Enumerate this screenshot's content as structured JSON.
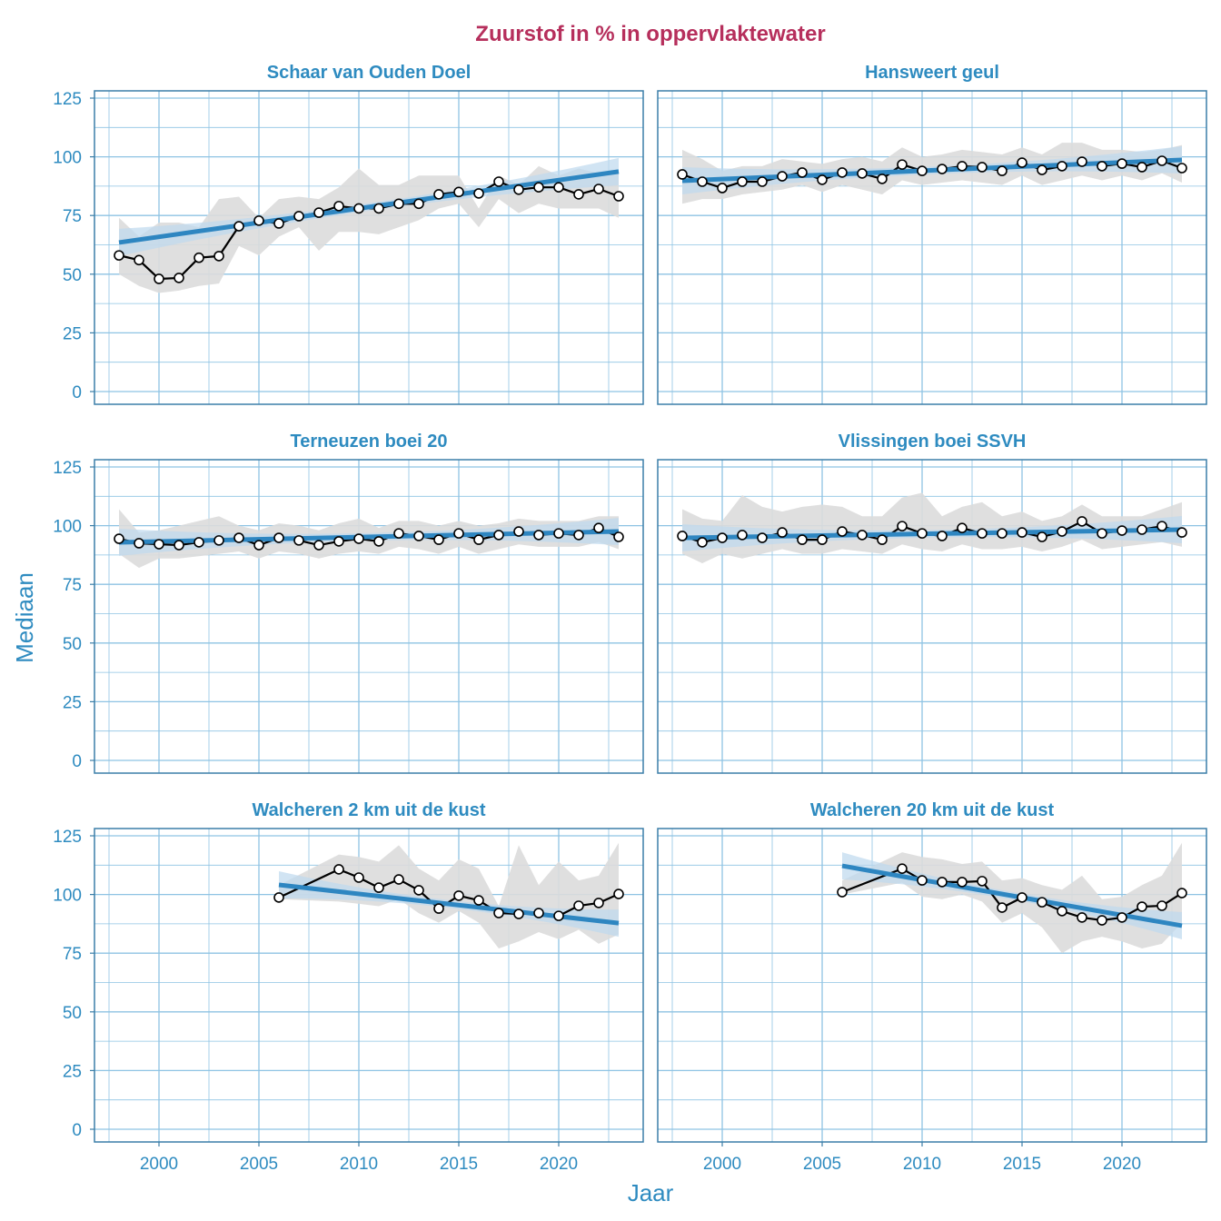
{
  "title": "Zuurstof in % in oppervlaktewater",
  "colors": {
    "title": "#B62F5C",
    "accent": "#2E8BC0",
    "trend": "#2E86C1",
    "grid": "#8EC3E3",
    "band": "#DCDCDC",
    "trend_band": "#BDD9EE"
  },
  "chart_data": [
    {
      "type": "line",
      "panel": "Schaar van Ouden Doel",
      "x": [
        1998,
        1999,
        2000,
        2001,
        2002,
        2003,
        2004,
        2005,
        2006,
        2007,
        2008,
        2009,
        2010,
        2011,
        2012,
        2013,
        2014,
        2015,
        2016,
        2017,
        2018,
        2019,
        2020,
        2021,
        2022,
        2023
      ],
      "median": [
        58,
        56,
        48,
        48.4,
        57,
        57.7,
        70.4,
        72.8,
        71.6,
        74.7,
        76.2,
        79,
        78,
        78,
        80,
        80,
        84,
        85,
        84.4,
        89.4,
        86,
        87,
        87,
        84,
        86.3,
        83.2
      ],
      "lower": [
        50,
        45,
        42,
        43,
        45,
        46,
        62,
        58,
        66,
        70,
        60,
        68,
        68,
        67,
        70,
        73,
        78,
        80,
        70,
        82,
        76,
        80,
        78,
        78,
        78,
        74
      ],
      "upper": [
        74,
        66,
        72,
        72,
        70,
        82,
        83,
        74,
        82,
        83,
        82,
        87,
        95,
        88,
        88,
        92,
        92,
        92,
        78,
        92,
        88,
        96,
        92,
        95,
        93,
        94
      ],
      "trend": [
        63.5,
        93.7
      ]
    },
    {
      "type": "line",
      "panel": "Hansweert geul",
      "x": [
        1998,
        1999,
        2000,
        2001,
        2002,
        2003,
        2004,
        2005,
        2006,
        2007,
        2008,
        2009,
        2010,
        2011,
        2012,
        2013,
        2014,
        2015,
        2016,
        2017,
        2018,
        2019,
        2020,
        2021,
        2022,
        2023
      ],
      "median": [
        92.5,
        89.4,
        86.7,
        89.4,
        89.4,
        91.7,
        93.3,
        90.2,
        93.3,
        92.9,
        90.6,
        96.7,
        94,
        94.8,
        96,
        95.6,
        94,
        97.5,
        94.4,
        96,
        97.9,
        96,
        97.1,
        95.6,
        98.3,
        95.2
      ],
      "lower": [
        80,
        82,
        82,
        84,
        85,
        86,
        88,
        85,
        88,
        86,
        84,
        90,
        88,
        89,
        90,
        89,
        88,
        92,
        88,
        90,
        92,
        90,
        92,
        90,
        93,
        89
      ],
      "upper": [
        103,
        99,
        94,
        96,
        96,
        99,
        98,
        97,
        99,
        100,
        98,
        104,
        100,
        101,
        103,
        102,
        101,
        104,
        101,
        106,
        106,
        103,
        103,
        102,
        103,
        105
      ],
      "trend": [
        89.8,
        98.7
      ]
    },
    {
      "type": "line",
      "panel": "Terneuzen boei 20",
      "x": [
        1998,
        1999,
        2000,
        2001,
        2002,
        2003,
        2004,
        2005,
        2006,
        2007,
        2008,
        2009,
        2010,
        2011,
        2012,
        2013,
        2014,
        2015,
        2016,
        2017,
        2018,
        2019,
        2020,
        2021,
        2022,
        2023
      ],
      "median": [
        94.4,
        92.5,
        92.1,
        91.7,
        92.9,
        93.7,
        94.8,
        91.7,
        94.8,
        93.7,
        91.7,
        93.3,
        94.4,
        93.3,
        96.7,
        95.6,
        94,
        96.7,
        94,
        96,
        97.5,
        96,
        96.7,
        96,
        99,
        95.2
      ],
      "lower": [
        88,
        82,
        86,
        86,
        87,
        88,
        89,
        86,
        89,
        88,
        86,
        88,
        89,
        88,
        91,
        90,
        88,
        91,
        88,
        90,
        92,
        91,
        91,
        91,
        93,
        90
      ],
      "upper": [
        107,
        97,
        98,
        100,
        102,
        104,
        100,
        98,
        101,
        100,
        98,
        101,
        103,
        99,
        102,
        102,
        100,
        102,
        100,
        101,
        103,
        102,
        102,
        102,
        104,
        104
      ],
      "trend": [
        92.9,
        97.5
      ]
    },
    {
      "type": "line",
      "panel": "Vlissingen boei SSVH",
      "x": [
        1998,
        1999,
        2000,
        2001,
        2002,
        2003,
        2004,
        2005,
        2006,
        2007,
        2008,
        2009,
        2010,
        2011,
        2012,
        2013,
        2014,
        2015,
        2016,
        2017,
        2018,
        2019,
        2020,
        2021,
        2022,
        2023
      ],
      "median": [
        95.6,
        92.9,
        94.8,
        96,
        94.8,
        97.1,
        94,
        94,
        97.5,
        96,
        94,
        99.8,
        96.7,
        95.6,
        99,
        96.7,
        96.7,
        97.1,
        95.2,
        97.5,
        101.8,
        96.7,
        97.9,
        98.3,
        99.8,
        97.1
      ],
      "lower": [
        88,
        84,
        88,
        86,
        88,
        90,
        88,
        88,
        90,
        89,
        88,
        92,
        90,
        89,
        92,
        90,
        90,
        91,
        89,
        91,
        94,
        90,
        91,
        92,
        93,
        91
      ],
      "upper": [
        107,
        103,
        102,
        113,
        108,
        106,
        108,
        109,
        108,
        104,
        104,
        112,
        114,
        104,
        108,
        110,
        104,
        106,
        102,
        104,
        109,
        104,
        104,
        104,
        107,
        110
      ],
      "trend": [
        94.8,
        98.3
      ]
    },
    {
      "type": "line",
      "panel": "Walcheren 2 km uit de kust",
      "x": [
        2006,
        2009,
        2010,
        2011,
        2012,
        2013,
        2014,
        2015,
        2016,
        2017,
        2018,
        2019,
        2020,
        2021,
        2022,
        2023
      ],
      "median": [
        98.7,
        110.7,
        107.2,
        102.9,
        106.4,
        101.8,
        94,
        99.5,
        97.5,
        92.1,
        91.7,
        92.1,
        90.9,
        95.2,
        96.4,
        100.2
      ],
      "lower": [
        98,
        97,
        96,
        95,
        98,
        92,
        88,
        93,
        88,
        77,
        80,
        84,
        81,
        85,
        79,
        83
      ],
      "upper": [
        104,
        117,
        116,
        114,
        121,
        111,
        106,
        115,
        111,
        95,
        121,
        104,
        114,
        106,
        108,
        122
      ],
      "trend": [
        104.1,
        87.8
      ]
    },
    {
      "type": "line",
      "panel": "Walcheren 20 km uit de kust",
      "x": [
        2006,
        2009,
        2010,
        2011,
        2012,
        2013,
        2014,
        2015,
        2016,
        2017,
        2018,
        2019,
        2020,
        2021,
        2022,
        2023
      ],
      "median": [
        101,
        111,
        106,
        105.3,
        105.3,
        105.7,
        94.4,
        98.7,
        96.7,
        92.9,
        90.2,
        89,
        90.2,
        94.8,
        95.2,
        100.6
      ],
      "lower": [
        100,
        105,
        99,
        98,
        100,
        97,
        88,
        92,
        86,
        75,
        80,
        82,
        80,
        77,
        79,
        88
      ],
      "upper": [
        106,
        118,
        116,
        115,
        113,
        114,
        106,
        107,
        104,
        102,
        108,
        98,
        99,
        104,
        108,
        122
      ],
      "trend": [
        112.2,
        86.7
      ]
    }
  ],
  "y_axis": {
    "label": "Mediaan",
    "ticks": [
      "0",
      "25",
      "50",
      "75",
      "100",
      "125"
    ],
    "range": [
      -5,
      130
    ]
  },
  "x_axis": {
    "label": "Jaar",
    "ticks": [
      "2000",
      "2005",
      "2010",
      "2015",
      "2020"
    ],
    "range": [
      1996.8,
      2024.2
    ]
  }
}
